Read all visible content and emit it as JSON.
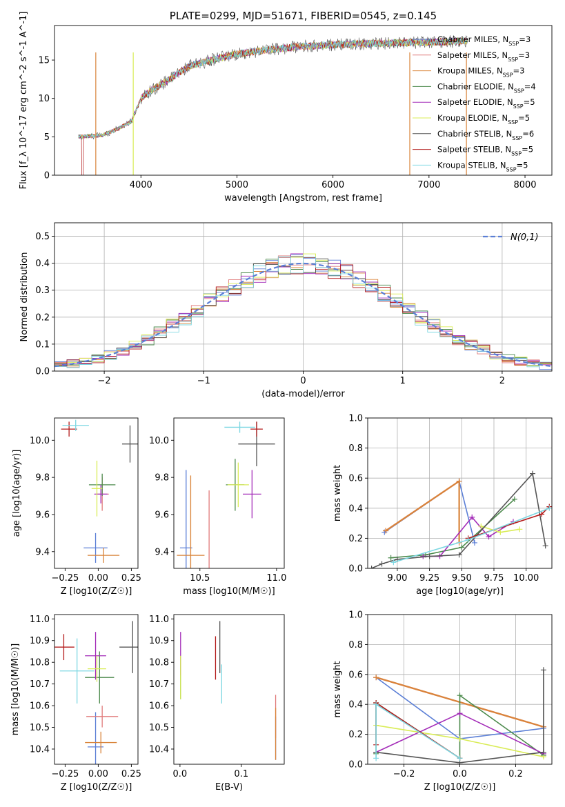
{
  "title": "PLATE=0299, MJD=51671, FIBERID=0545, z=0.145",
  "colors": {
    "Chabrier MILES": "#5b7fd6",
    "Salpeter MILES": "#e07a7a",
    "Kroupa MILES": "#d9843a",
    "Chabrier ELODIE": "#4c8a4c",
    "Salpeter ELODIE": "#a32bb8",
    "Kroupa ELODIE": "#d9ec55",
    "Chabrier STELIB": "#555555",
    "Salpeter STELIB": "#b31b1b",
    "Kroupa STELIB": "#7dd7e2",
    "gauss": "#5b7fd6",
    "orange": "#e0722e"
  },
  "chart_data": [
    {
      "type": "line",
      "panel": "spectrum",
      "title": "PLATE=0299, MJD=51671, FIBERID=0545, z=0.145",
      "xlabel": "wavelength [Angstrom, rest frame]",
      "ylabel": "Flux [f_λ 10^-17 erg cm^-2 s^-1 A^-1]",
      "xlim": [
        3100,
        8280
      ],
      "ylim": [
        0,
        19.5
      ],
      "xticks": [
        4000,
        5000,
        6000,
        7000,
        8000
      ],
      "yticks": [
        0,
        5,
        10,
        15
      ],
      "legend_position": "top-right",
      "series": [
        {
          "name": "Chabrier MILES, N_SSP=3"
        },
        {
          "name": "Salpeter MILES, N_SSP=3"
        },
        {
          "name": "Kroupa MILES, N_SSP=3"
        },
        {
          "name": "Chabrier ELODIE, N_SSP=4"
        },
        {
          "name": "Salpeter ELODIE, N_SSP=5"
        },
        {
          "name": "Kroupa ELODIE, N_SSP=5"
        },
        {
          "name": "Chabrier STELIB, N_SSP=6"
        },
        {
          "name": "Salpeter STELIB, N_SSP=5"
        },
        {
          "name": "Kroupa STELIB, N_SSP=5"
        }
      ],
      "continuum": {
        "x": [
          3350,
          3600,
          3750,
          3900,
          4000,
          4100,
          4300,
          4500,
          4800,
          5000,
          5300,
          5600,
          6000,
          6500,
          7000,
          7400
        ],
        "y": [
          5.0,
          5.2,
          6.0,
          7.0,
          10.0,
          11.0,
          12.5,
          14.2,
          15.2,
          15.8,
          16.3,
          16.7,
          17.0,
          17.2,
          17.3,
          17.5
        ]
      }
    },
    {
      "type": "line",
      "panel": "residual-histogram",
      "xlabel": "(data-model)/error",
      "ylabel": "Normed distribution",
      "xlim": [
        -2.5,
        2.5
      ],
      "ylim": [
        0,
        0.55
      ],
      "xticks": [
        -2,
        -1,
        0,
        1,
        2
      ],
      "yticks": [
        0.0,
        0.1,
        0.2,
        0.3,
        0.4,
        0.5
      ],
      "grid": true,
      "legend_position": "top-right",
      "legend": "N(0,1)"
    },
    {
      "type": "scatter",
      "panel": "age-vs-Z",
      "xlabel": "Z [log10(Z/Z☉)]",
      "ylabel": "age [log10(age/yr)]",
      "xlim": [
        -0.33,
        0.3
      ],
      "ylim": [
        9.31,
        10.12
      ],
      "xticks": [
        -0.25,
        0.0,
        0.25
      ],
      "yticks": [
        9.4,
        9.6,
        9.8,
        10.0
      ],
      "points": [
        {
          "model": "Chabrier MILES",
          "x": -0.02,
          "y": 9.42,
          "xerr": 0.09,
          "yerr": 0.08
        },
        {
          "model": "Salpeter MILES",
          "x": 0.03,
          "y": 9.71,
          "xerr": 0.05,
          "yerr": 0.09
        },
        {
          "model": "Kroupa MILES",
          "x": 0.04,
          "y": 9.38,
          "xerr": 0.12,
          "yerr": 0.04
        },
        {
          "model": "Chabrier ELODIE",
          "x": 0.03,
          "y": 9.76,
          "xerr": 0.1,
          "yerr": 0.06
        },
        {
          "model": "Salpeter ELODIE",
          "x": 0.02,
          "y": 9.71,
          "xerr": 0.05,
          "yerr": 0.05
        },
        {
          "model": "Kroupa ELODIE",
          "x": -0.01,
          "y": 9.74,
          "xerr": 0.04,
          "yerr": 0.15
        },
        {
          "model": "Chabrier STELIB",
          "x": 0.24,
          "y": 9.98,
          "xerr": 0.06,
          "yerr": 0.1
        },
        {
          "model": "Salpeter STELIB",
          "x": -0.22,
          "y": 10.06,
          "xerr": 0.06,
          "yerr": 0.04
        },
        {
          "model": "Kroupa STELIB",
          "x": -0.17,
          "y": 10.08,
          "xerr": 0.1,
          "yerr": 0.03
        }
      ]
    },
    {
      "type": "scatter",
      "panel": "age-vs-mass",
      "xlabel": "mass [log10(M/M☉)]",
      "xlim": [
        10.33,
        11.05
      ],
      "ylim": [
        9.31,
        10.12
      ],
      "xticks": [
        10.5,
        11.0
      ],
      "yticks": [
        9.4,
        9.6,
        9.8,
        10.0
      ],
      "points": [
        {
          "model": "Chabrier MILES",
          "x": 10.41,
          "y": 9.42,
          "xerr": 0.04,
          "yerr": 0.42
        },
        {
          "model": "Salpeter MILES",
          "x": 10.56,
          "y": 9.5,
          "xerr": 0.0,
          "yerr": 0.23
        },
        {
          "model": "Kroupa MILES",
          "x": 10.44,
          "y": 9.38,
          "xerr": 0.09,
          "yerr": 0.43
        },
        {
          "model": "Chabrier ELODIE",
          "x": 10.73,
          "y": 9.76,
          "xerr": 0.06,
          "yerr": 0.14
        },
        {
          "model": "Salpeter ELODIE",
          "x": 10.84,
          "y": 9.71,
          "xerr": 0.06,
          "yerr": 0.13
        },
        {
          "model": "Kroupa ELODIE",
          "x": 10.75,
          "y": 9.76,
          "xerr": 0.07,
          "yerr": 0.12
        },
        {
          "model": "Chabrier STELIB",
          "x": 10.87,
          "y": 9.98,
          "xerr": 0.12,
          "yerr": 0.12
        },
        {
          "model": "Salpeter STELIB",
          "x": 10.87,
          "y": 10.06,
          "xerr": 0.04,
          "yerr": 0.04
        },
        {
          "model": "Kroupa STELIB",
          "x": 10.76,
          "y": 10.07,
          "xerr": 0.1,
          "yerr": 0.03
        }
      ]
    },
    {
      "type": "line",
      "panel": "mass-weight-vs-age",
      "xlabel": "age [log10(age/yr)]",
      "ylabel": "mass weight",
      "xlim": [
        8.77,
        10.2
      ],
      "ylim": [
        0,
        1.0
      ],
      "xticks": [
        9.0,
        9.25,
        9.5,
        9.75,
        10.0
      ],
      "yticks": [
        0.0,
        0.2,
        0.4,
        0.6,
        0.8,
        1.0
      ],
      "grid": true,
      "series": [
        {
          "model": "Chabrier MILES",
          "x": [
            8.9,
            9.48,
            9.6
          ],
          "y": [
            0.24,
            0.58,
            0.17
          ]
        },
        {
          "model": "Salpeter MILES",
          "x": [
            8.91,
            9.48
          ],
          "y": [
            0.25,
            0.58
          ]
        },
        {
          "model": "Kroupa MILES",
          "x": [
            8.91,
            9.48,
            9.48
          ],
          "y": [
            0.25,
            0.58,
            0.17
          ]
        },
        {
          "model": "Chabrier ELODIE",
          "x": [
            8.95,
            9.22,
            9.5,
            9.91
          ],
          "y": [
            0.07,
            0.09,
            0.14,
            0.46
          ]
        },
        {
          "model": "Salpeter ELODIE",
          "x": [
            9.2,
            9.33,
            9.58,
            9.71,
            9.9
          ],
          "y": [
            0.08,
            0.08,
            0.34,
            0.21,
            0.31
          ]
        },
        {
          "model": "Kroupa ELODIE",
          "x": [
            9.65,
            9.8,
            9.95
          ],
          "y": [
            0.28,
            0.24,
            0.26
          ]
        },
        {
          "model": "Chabrier STELIB",
          "x": [
            8.8,
            8.88,
            9.0,
            9.25,
            9.48,
            10.05,
            10.15
          ],
          "y": [
            0.0,
            0.03,
            0.06,
            0.08,
            0.09,
            0.63,
            0.15
          ]
        },
        {
          "model": "Salpeter STELIB",
          "x": [
            9.55,
            10.12,
            10.18
          ],
          "y": [
            0.2,
            0.36,
            0.41
          ]
        },
        {
          "model": "Kroupa STELIB",
          "x": [
            8.97,
            9.55,
            10.18
          ],
          "y": [
            0.04,
            0.19,
            0.4
          ]
        }
      ]
    },
    {
      "type": "scatter",
      "panel": "mass-vs-Z",
      "xlabel": "Z [log10(Z/Z☉)]",
      "ylabel": "mass [log10(M/M☉)]",
      "xlim": [
        -0.33,
        0.3
      ],
      "ylim": [
        10.33,
        11.02
      ],
      "xticks": [
        -0.25,
        0.0,
        0.25
      ],
      "yticks": [
        10.4,
        10.5,
        10.6,
        10.7,
        10.8,
        10.9,
        11.0
      ],
      "points": [
        {
          "model": "Chabrier MILES",
          "x": -0.02,
          "y": 10.41,
          "xerr": 0.06,
          "yerr": 0.16
        },
        {
          "model": "Salpeter MILES",
          "x": 0.03,
          "y": 10.55,
          "xerr": 0.12,
          "yerr": 0.05
        },
        {
          "model": "Kroupa MILES",
          "x": 0.02,
          "y": 10.43,
          "xerr": 0.12,
          "yerr": 0.05
        },
        {
          "model": "Chabrier ELODIE",
          "x": 0.01,
          "y": 10.73,
          "xerr": 0.11,
          "yerr": 0.12
        },
        {
          "model": "Salpeter ELODIE",
          "x": -0.02,
          "y": 10.83,
          "xerr": 0.08,
          "yerr": 0.11
        },
        {
          "model": "Kroupa ELODIE",
          "x": -0.01,
          "y": 10.77,
          "xerr": 0.07,
          "yerr": 0.06
        },
        {
          "model": "Chabrier STELIB",
          "x": 0.26,
          "y": 10.87,
          "xerr": 0.1,
          "yerr": 0.12
        },
        {
          "model": "Salpeter STELIB",
          "x": -0.26,
          "y": 10.87,
          "xerr": 0.08,
          "yerr": 0.06
        },
        {
          "model": "Kroupa STELIB",
          "x": -0.16,
          "y": 10.76,
          "xerr": 0.13,
          "yerr": 0.15
        }
      ]
    },
    {
      "type": "scatter",
      "panel": "mass-vs-EBV",
      "xlabel": "E(B-V)",
      "xlim": [
        -0.01,
        0.17
      ],
      "ylim": [
        10.33,
        11.02
      ],
      "xticks": [
        0.0,
        0.1
      ],
      "yticks": [
        10.4,
        10.5,
        10.6,
        10.7,
        10.8,
        10.9,
        11.0
      ],
      "points": [
        {
          "model": "Chabrier MILES",
          "x": 0.156,
          "y": 10.45,
          "xerr": 0,
          "yerr": 0.1
        },
        {
          "model": "Salpeter MILES",
          "x": 0.156,
          "y": 10.55,
          "xerr": 0,
          "yerr": 0.1
        },
        {
          "model": "Kroupa MILES",
          "x": 0.156,
          "y": 10.47,
          "xerr": 0,
          "yerr": 0.12
        },
        {
          "model": "Chabrier ELODIE",
          "x": 0.001,
          "y": 10.73,
          "xerr": 0,
          "yerr": 0.1
        },
        {
          "model": "Salpeter ELODIE",
          "x": 0.001,
          "y": 10.84,
          "xerr": 0,
          "yerr": 0.1
        },
        {
          "model": "Kroupa ELODIE",
          "x": 0.001,
          "y": 10.73,
          "xerr": 0,
          "yerr": 0.1
        },
        {
          "model": "Chabrier STELIB",
          "x": 0.065,
          "y": 10.87,
          "xerr": 0,
          "yerr": 0.12
        },
        {
          "model": "Salpeter STELIB",
          "x": 0.058,
          "y": 10.82,
          "xerr": 0,
          "yerr": 0.1
        },
        {
          "model": "Kroupa STELIB",
          "x": 0.068,
          "y": 10.7,
          "xerr": 0,
          "yerr": 0.09
        }
      ]
    },
    {
      "type": "line",
      "panel": "mass-weight-vs-Z",
      "xlabel": "Z [log10(Z/Z☉)]",
      "ylabel": "mass weight",
      "xlim": [
        -0.33,
        0.33
      ],
      "ylim": [
        0,
        1.0
      ],
      "xticks": [
        -0.2,
        0.0,
        0.2
      ],
      "yticks": [
        0.0,
        0.2,
        0.4,
        0.6,
        0.8,
        1.0
      ],
      "grid": true,
      "series": [
        {
          "model": "Chabrier MILES",
          "x": [
            -0.3,
            0.0,
            0.3
          ],
          "y": [
            0.58,
            0.17,
            0.24
          ]
        },
        {
          "model": "Salpeter MILES",
          "x": [
            -0.3,
            0.3
          ],
          "y": [
            0.58,
            0.25
          ]
        },
        {
          "model": "Kroupa MILES",
          "x": [
            -0.3,
            0.3
          ],
          "y": [
            0.58,
            0.25
          ]
        },
        {
          "model": "Chabrier ELODIE",
          "x": [
            -0.3,
            -0.3,
            0.0,
            0.0,
            0.3
          ],
          "y": [
            0.07,
            0.41,
            0.04,
            0.46,
            0.06
          ]
        },
        {
          "model": "Salpeter ELODIE",
          "x": [
            -0.3,
            0.0,
            0.3
          ],
          "y": [
            0.08,
            0.34,
            0.07
          ]
        },
        {
          "model": "Kroupa ELODIE",
          "x": [
            -0.3,
            0.0,
            0.3
          ],
          "y": [
            0.26,
            0.17,
            0.05
          ]
        },
        {
          "model": "Chabrier STELIB",
          "x": [
            -0.3,
            0.0,
            0.3,
            0.3
          ],
          "y": [
            0.08,
            0.01,
            0.08,
            0.63
          ]
        },
        {
          "model": "Salpeter STELIB",
          "x": [
            -0.3,
            -0.3,
            0.0
          ],
          "y": [
            0.13,
            0.41,
            0.04
          ]
        },
        {
          "model": "Kroupa STELIB",
          "x": [
            -0.3,
            -0.3,
            0.0
          ],
          "y": [
            0.04,
            0.4,
            0.04
          ]
        }
      ]
    }
  ]
}
